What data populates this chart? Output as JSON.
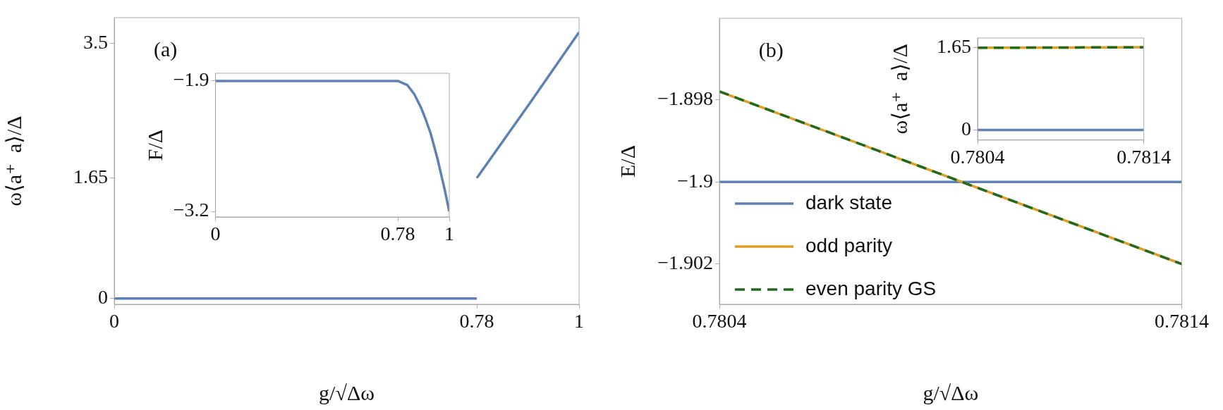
{
  "chart_data": [
    {
      "type": "line",
      "xlabel": "g/√Δω",
      "ylabel": "ω⟨a⁺  a⟩/Δ",
      "annotations": [
        "(a)"
      ],
      "xlim": [
        0,
        1
      ],
      "xticks": [
        0,
        0.78,
        1
      ],
      "ylim": [
        -0.08,
        3.85
      ],
      "yticks": [
        0,
        1.65,
        3.5
      ],
      "series": [
        {
          "color": "#5e81b5",
          "x": [
            0,
            0.78
          ],
          "values": [
            0,
            0
          ]
        },
        {
          "color": "#5e81b5",
          "x": [
            0.78,
            0.89,
            1
          ],
          "values": [
            1.65,
            2.64,
            3.65
          ]
        }
      ]
    },
    {
      "type": "line",
      "ylabel": "F/Δ",
      "xlim": [
        0,
        1
      ],
      "xticks": [
        0,
        0.78,
        1
      ],
      "ylim": [
        -3.256,
        -1.823
      ],
      "yticks": [
        {
          "value": -1.9,
          "label": "−1.9"
        },
        {
          "value": -3.2,
          "label": "−3.2"
        }
      ],
      "series": [
        {
          "color": "#5e81b5",
          "x": [
            0,
            0.78,
            0.82,
            0.85,
            0.88,
            0.9,
            0.92,
            0.95,
            0.98,
            1
          ],
          "values": [
            -1.9,
            -1.9,
            -1.94,
            -2.03,
            -2.17,
            -2.29,
            -2.42,
            -2.68,
            -2.98,
            -3.2
          ]
        }
      ]
    },
    {
      "type": "line",
      "xlabel": "g/√Δω",
      "ylabel": "E/Δ",
      "annotations": [
        "(b)"
      ],
      "legend": "bottom left",
      "xlim": [
        0.7804,
        0.7814
      ],
      "xticks": [
        0.7804,
        0.7814
      ],
      "ylim": [
        -1.90298,
        -1.89602
      ],
      "yticks": [
        {
          "value": -1.898,
          "label": "−1.898"
        },
        {
          "value": -1.9,
          "label": "−1.9"
        },
        {
          "value": -1.902,
          "label": "−1.902"
        }
      ],
      "series": [
        {
          "name": "dark state",
          "color": "#5e81b5",
          "x": [
            0.7804,
            0.7814
          ],
          "values": [
            -1.9,
            -1.9
          ]
        },
        {
          "name": "odd parity",
          "color": "#e19c24",
          "x": [
            0.7804,
            0.7814
          ],
          "values": [
            -1.8978,
            -1.902
          ]
        },
        {
          "name": "even parity GS",
          "color": "#1f6b1f",
          "line_style": "dashed",
          "x": [
            0.7804,
            0.7814
          ],
          "values": [
            -1.8978,
            -1.902
          ]
        }
      ]
    },
    {
      "type": "line",
      "ylabel": "ω⟨a⁺  a⟩/Δ",
      "xlim": [
        0.7804,
        0.7814
      ],
      "xticks": [
        0.7804,
        0.7814
      ],
      "ylim": [
        -0.205,
        1.847
      ],
      "yticks": [
        0,
        1.65
      ],
      "series": [
        {
          "color": "#5e81b5",
          "x": [
            0.7804,
            0.7814
          ],
          "values": [
            0,
            0
          ]
        },
        {
          "color": "#e19c24",
          "x": [
            0.7804,
            0.7814
          ],
          "values": [
            1.65,
            1.66
          ]
        },
        {
          "color": "#1f6b1f",
          "line_style": "dashed",
          "x": [
            0.7804,
            0.7814
          ],
          "values": [
            1.65,
            1.66
          ]
        }
      ]
    }
  ]
}
